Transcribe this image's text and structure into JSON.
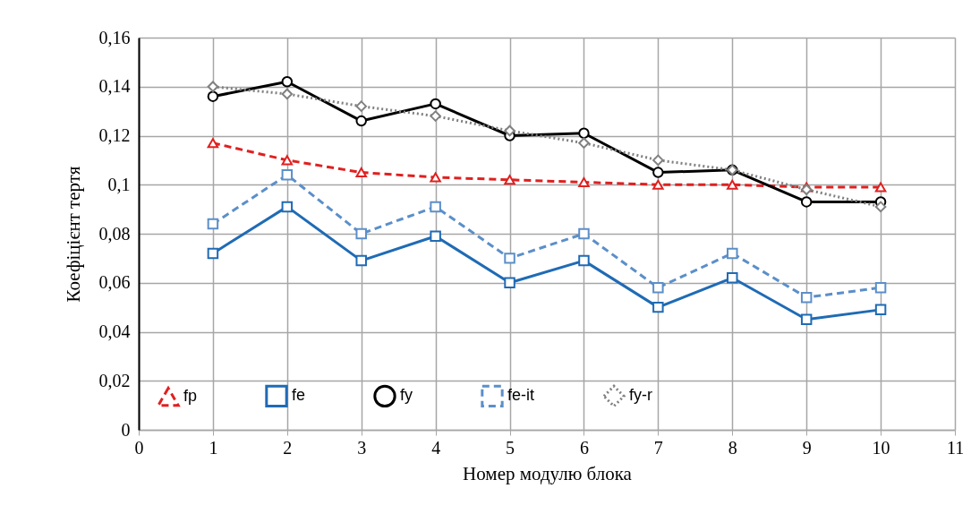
{
  "chart_data": {
    "type": "line",
    "xlabel": "Номер модулю блока",
    "ylabel": "Коефіцієнт тертя",
    "x": [
      1,
      2,
      3,
      4,
      5,
      6,
      7,
      8,
      9,
      10
    ],
    "series": [
      {
        "name": "fp",
        "color": "#e02020",
        "marker": "triangle",
        "line_style": "dashed",
        "values": [
          0.117,
          0.11,
          0.105,
          0.103,
          0.102,
          0.101,
          0.1,
          0.1,
          0.099,
          0.099
        ]
      },
      {
        "name": "fe",
        "color": "#1f6bb5",
        "marker": "square",
        "line_style": "solid",
        "values": [
          0.072,
          0.091,
          0.069,
          0.079,
          0.06,
          0.069,
          0.05,
          0.062,
          0.045,
          0.049
        ]
      },
      {
        "name": "fy",
        "color": "#000000",
        "marker": "circle",
        "line_style": "solid",
        "values": [
          0.136,
          0.142,
          0.126,
          0.133,
          0.12,
          0.121,
          0.105,
          0.106,
          0.093,
          0.093
        ]
      },
      {
        "name": "fe-it",
        "color": "#5b8fc9",
        "marker": "square",
        "line_style": "dashed",
        "values": [
          0.084,
          0.104,
          0.08,
          0.091,
          0.07,
          0.08,
          0.058,
          0.072,
          0.054,
          0.058
        ]
      },
      {
        "name": "fy-r",
        "color": "#808080",
        "marker": "diamond",
        "line_style": "dotted",
        "values": [
          0.14,
          0.137,
          0.132,
          0.128,
          0.122,
          0.117,
          0.11,
          0.106,
          0.098,
          0.091
        ]
      }
    ],
    "xlim": [
      0,
      11
    ],
    "xticks": [
      0,
      1,
      2,
      3,
      4,
      5,
      6,
      7,
      8,
      9,
      10,
      11
    ],
    "ylim": [
      0,
      0.16
    ],
    "yticks": [
      0,
      {
        "value": 0.02,
        "label": "0,02"
      },
      {
        "value": 0.04,
        "label": "0,04"
      },
      {
        "value": 0.06,
        "label": "0,06"
      },
      {
        "value": 0.08,
        "label": "0,08"
      },
      {
        "value": 0.1,
        "label": "0,1"
      },
      {
        "value": 0.12,
        "label": "0,12"
      },
      {
        "value": 0.14,
        "label": "0,14"
      },
      {
        "value": 0.16,
        "label": "0,16"
      }
    ],
    "grid": true,
    "legend": "bottom"
  }
}
